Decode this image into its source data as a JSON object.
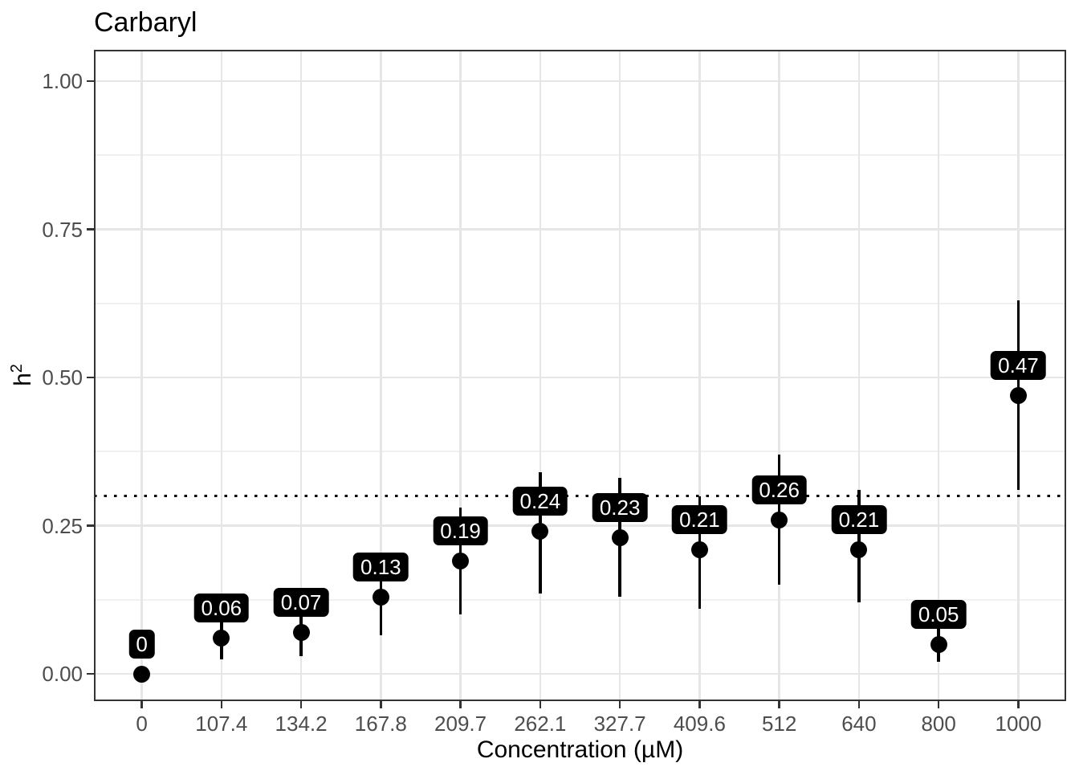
{
  "figure": {
    "title": "Carbaryl",
    "background": "#ffffff"
  },
  "axes": {
    "x_title": "Concentration (µM)",
    "y_title_base": "h",
    "y_title_exponent": "2"
  },
  "chart_data": {
    "type": "pointrange",
    "title": "Carbaryl",
    "xlabel": "Concentration (µM)",
    "ylabel": "h^2",
    "categories": [
      "0",
      "107.4",
      "134.2",
      "167.8",
      "209.7",
      "262.1",
      "327.7",
      "409.6",
      "512",
      "640",
      "800",
      "1000"
    ],
    "values": [
      0,
      0.06,
      0.07,
      0.13,
      0.19,
      0.24,
      0.23,
      0.21,
      0.26,
      0.21,
      0.05,
      0.47
    ],
    "point_labels": [
      "0",
      "0.06",
      "0.07",
      "0.13",
      "0.19",
      "0.24",
      "0.23",
      "0.21",
      "0.26",
      "0.21",
      "0.05",
      "0.47"
    ],
    "ci_low": [
      0,
      0.025,
      0.03,
      0.065,
      0.1,
      0.135,
      0.13,
      0.11,
      0.15,
      0.12,
      0.02,
      0.31
    ],
    "ci_high": [
      0,
      0.1,
      0.12,
      0.17,
      0.28,
      0.34,
      0.33,
      0.3,
      0.37,
      0.31,
      0.09,
      0.63
    ],
    "y_ticks": [
      0,
      0.25,
      0.5,
      0.75,
      1
    ],
    "y_tick_labels": [
      "0.00",
      "0.25",
      "0.50",
      "0.75",
      "1.00"
    ],
    "y_minor_ticks": [
      0.125,
      0.375,
      0.625,
      0.875
    ],
    "ylim": [
      -0.046,
      1.05
    ],
    "hline": {
      "y": 0.3,
      "style": "dotted",
      "color": "#000000"
    },
    "grid": {
      "major": true,
      "minor_y": true,
      "minor_x": false
    },
    "legend": "none",
    "point_color": "#000000",
    "label_bg": "#000000",
    "label_fg": "#ffffff"
  },
  "colors": {
    "panel_border": "#333333",
    "grid_major": "#e6e6e6",
    "grid_minor": "#f0f0f0",
    "tick_label": "#4d4d4d",
    "axis_title": "#000000",
    "title": "#000000"
  }
}
